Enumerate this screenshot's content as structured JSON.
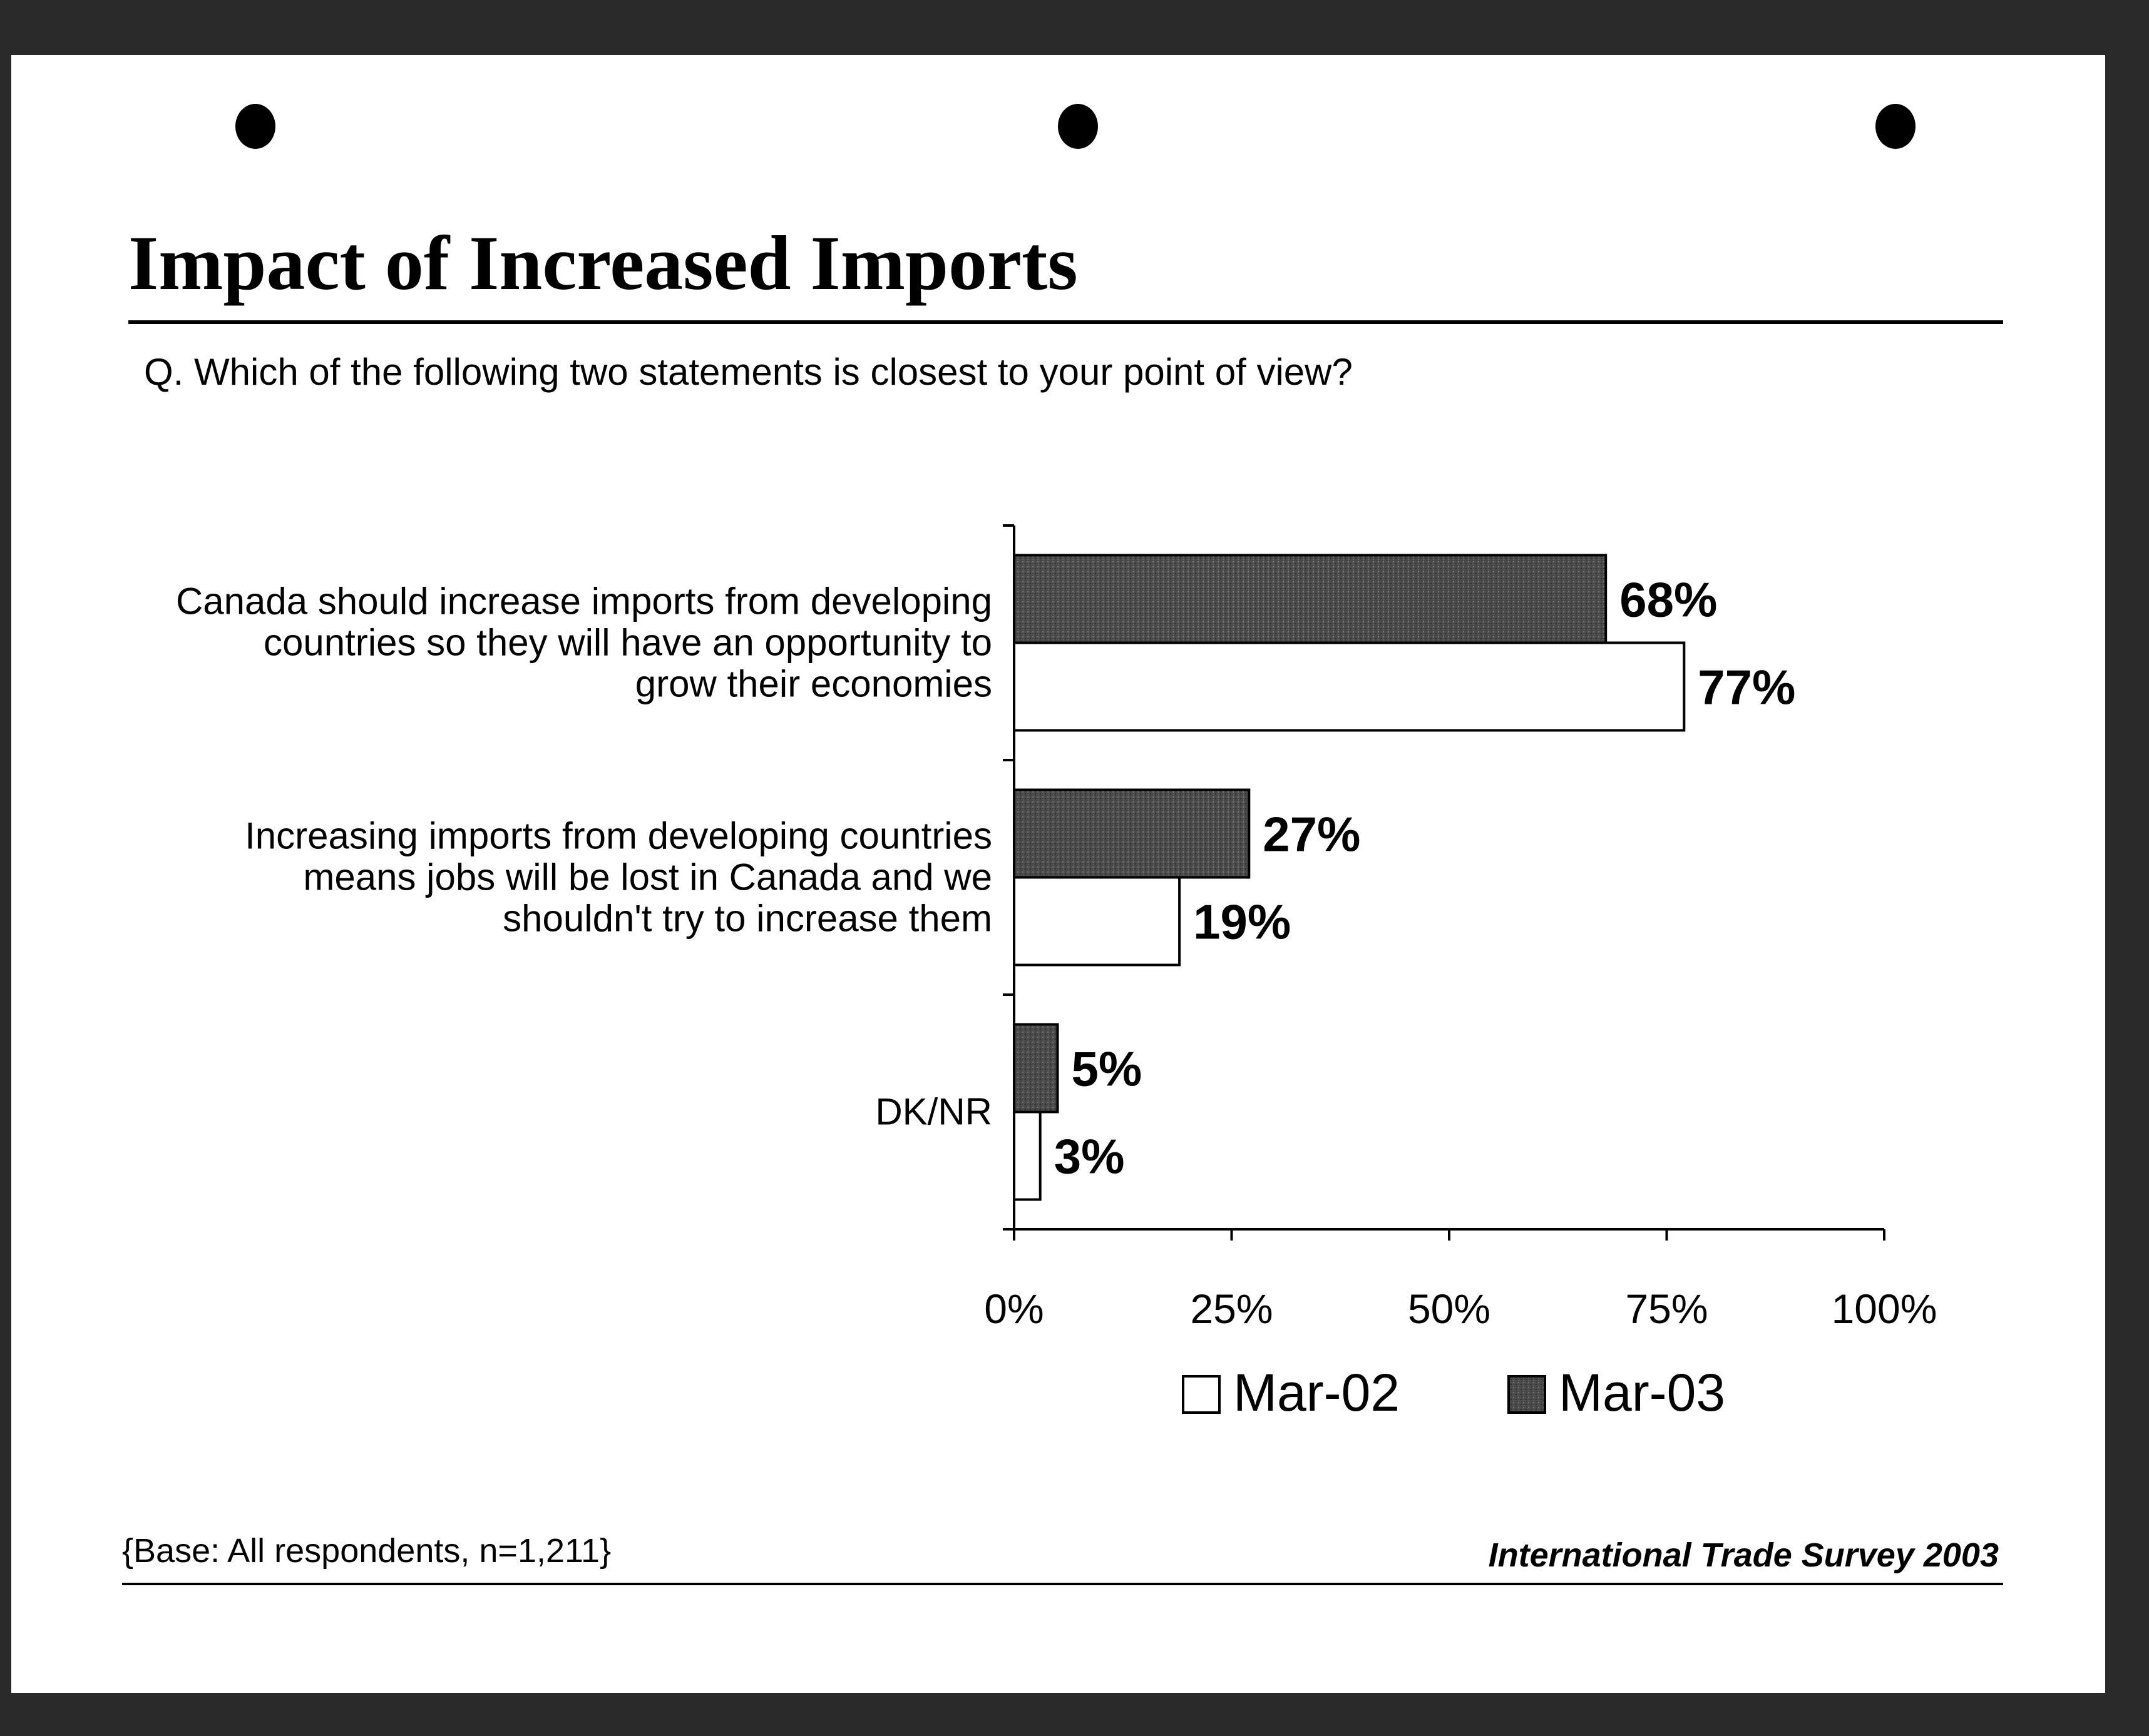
{
  "header": {
    "title": "Impact of Increased Imports",
    "question": "Q. Which of the following two statements is closest to your point of view?"
  },
  "footer": {
    "base_note": "{Base: All respondents, n=1,211}",
    "source": "International Trade Survey 2003"
  },
  "colors": {
    "mar02_fill": "#ffffff",
    "mar03_fill": "#4a4a4a",
    "axis": "#000000"
  },
  "chart_data": {
    "type": "bar",
    "orientation": "horizontal",
    "categories": [
      [
        "Canada should increase imports from developing",
        "countries so they will have an opportunity to",
        "grow their economies"
      ],
      [
        "Increasing imports from developing countries",
        "means jobs will be lost in Canada and we",
        "shouldn't try to increase them"
      ],
      [
        "DK/NR"
      ]
    ],
    "series": [
      {
        "name": "Mar-03",
        "values": [
          68,
          27,
          5
        ],
        "labels": [
          "68%",
          "27%",
          "5%"
        ]
      },
      {
        "name": "Mar-02",
        "values": [
          77,
          19,
          3
        ],
        "labels": [
          "77%",
          "19%",
          "3%"
        ]
      }
    ],
    "xlim": [
      0,
      100
    ],
    "xticks": [
      0,
      25,
      50,
      75,
      100
    ],
    "xtick_labels": [
      "0%",
      "25%",
      "50%",
      "75%",
      "100%"
    ],
    "legend": {
      "placement": "bottom",
      "order": [
        "Mar-02",
        "Mar-03"
      ]
    },
    "grid": false
  }
}
